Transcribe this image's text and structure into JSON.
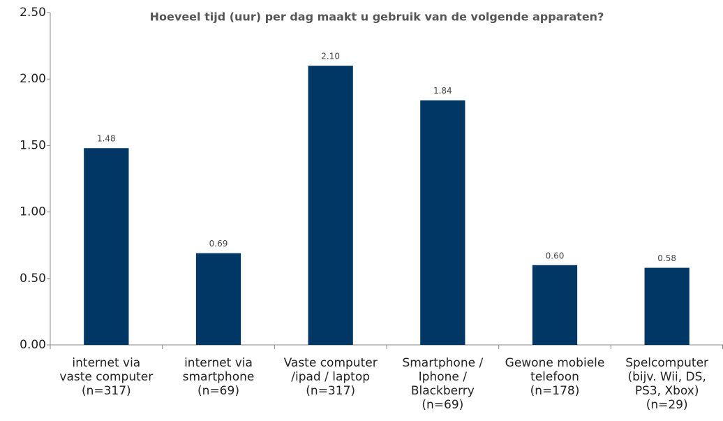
{
  "chart_data": {
    "type": "bar",
    "title": "Hoeveel tijd (uur) per dag maakt u gebruik van de volgende apparaten?",
    "categories": [
      "internet via\nvaste computer\n(n=317)",
      "internet via\nsmartphone\n(n=69)",
      "Vaste computer\n/ipad / laptop\n(n=317)",
      "Smartphone /\nIphone /\nBlackberry\n(n=69)",
      "Gewone mobiele\ntelefoon\n(n=178)",
      "Spelcomputer\n(bijv. Wii, DS,\nPS3, Xbox)\n(n=29)"
    ],
    "values": [
      1.48,
      0.69,
      2.1,
      1.84,
      0.6,
      0.58
    ],
    "value_labels": [
      "1.48",
      "0.69",
      "2.10",
      "1.84",
      "0.60",
      "0.58"
    ],
    "color": "#003764",
    "ylim": [
      0,
      2.5
    ],
    "yticks": [
      {
        "value": 0,
        "label": "0.00"
      },
      {
        "value": 0.5,
        "label": "0.50"
      },
      {
        "value": 1,
        "label": "1.00"
      },
      {
        "value": 1.5,
        "label": "1.50"
      },
      {
        "value": 2,
        "label": "2.00"
      },
      {
        "value": 2.5,
        "label": "2.50"
      }
    ],
    "grid": false
  }
}
